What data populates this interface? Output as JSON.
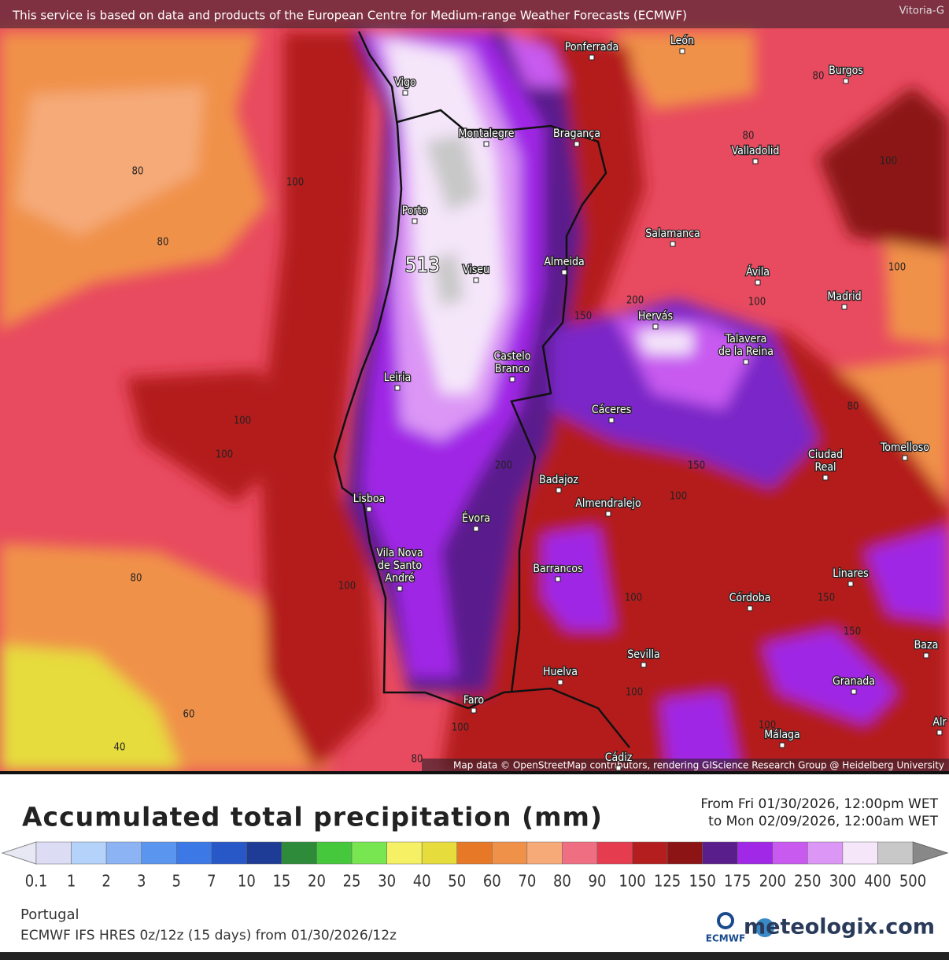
{
  "header": {
    "notice": "This service is based on data and products of the European Centre for Medium-range Weather Forecasts (ECMWF)",
    "corner": "Vitoria-G"
  },
  "map": {
    "cities": [
      {
        "lines": [
          "Vigo"
        ]
      },
      {
        "lines": [
          "Ponferrada"
        ]
      },
      {
        "lines": [
          "León"
        ]
      },
      {
        "lines": [
          "Burgos"
        ]
      },
      {
        "lines": [
          "Montalegre"
        ]
      },
      {
        "lines": [
          "Bragança"
        ]
      },
      {
        "lines": [
          "Valladolid"
        ]
      },
      {
        "lines": [
          "Porto"
        ]
      },
      {
        "lines": [
          "Salamanca"
        ]
      },
      {
        "lines": [
          "Viseu"
        ]
      },
      {
        "lines": [
          "Almeida"
        ]
      },
      {
        "lines": [
          "Ávila"
        ]
      },
      {
        "lines": [
          "Madrid"
        ]
      },
      {
        "lines": [
          "Hervás"
        ]
      },
      {
        "lines": [
          "Talavera",
          "de la Reina"
        ]
      },
      {
        "lines": [
          "Castelo",
          "Branco"
        ]
      },
      {
        "lines": [
          "Leiria"
        ]
      },
      {
        "lines": [
          "Cáceres"
        ]
      },
      {
        "lines": [
          "Ciudad",
          "Real"
        ]
      },
      {
        "lines": [
          "Tomelloso"
        ]
      },
      {
        "lines": [
          "Badajoz"
        ]
      },
      {
        "lines": [
          "Lisboa"
        ]
      },
      {
        "lines": [
          "Almendralejo"
        ]
      },
      {
        "lines": [
          "Évora"
        ]
      },
      {
        "lines": [
          "Vila Nova",
          "de Santo",
          "André"
        ]
      },
      {
        "lines": [
          "Barrancos"
        ]
      },
      {
        "lines": [
          "Linares"
        ]
      },
      {
        "lines": [
          "Córdoba"
        ]
      },
      {
        "lines": [
          "Sevilla"
        ]
      },
      {
        "lines": [
          "Baza"
        ]
      },
      {
        "lines": [
          "Huelva"
        ]
      },
      {
        "lines": [
          "Granada"
        ]
      },
      {
        "lines": [
          "Faro"
        ]
      },
      {
        "lines": [
          "Málaga"
        ]
      },
      {
        "lines": [
          "Cádiz"
        ]
      },
      {
        "lines": [
          "Alr"
        ]
      }
    ],
    "contour_labels": [
      "80",
      "100",
      "80",
      "100",
      "100",
      "80",
      "100",
      "60",
      "40",
      "80",
      "80",
      "100",
      "100",
      "100",
      "200",
      "150",
      "80",
      "200",
      "150",
      "100",
      "100",
      "150",
      "150",
      "100",
      "100",
      "80",
      "100"
    ],
    "max_label": "513",
    "attribution": "Map data © OpenStreetMap contributors, rendering GIScience Research Group @ Heidelberg University"
  },
  "legend": {
    "title": "Accumulated total precipitation (mm)",
    "period": [
      "From Fri 01/30/2026, 12:00pm WET",
      "to Mon 02/09/2026, 12:00am WET"
    ],
    "labels": [
      "0.1",
      "1",
      "2",
      "3",
      "5",
      "7",
      "10",
      "15",
      "20",
      "25",
      "30",
      "40",
      "50",
      "60",
      "70",
      "80",
      "90",
      "100",
      "125",
      "150",
      "175",
      "200",
      "250",
      "300",
      "400",
      "500"
    ],
    "colors": [
      "#dcdcf5",
      "#b4d2fa",
      "#8cb4f5",
      "#5a96f0",
      "#3c78e6",
      "#2858c8",
      "#1e3c96",
      "#2e8b3a",
      "#46c83c",
      "#78e650",
      "#f5f064",
      "#e6dc3c",
      "#e67828",
      "#f0914a",
      "#f5aa78",
      "#f06e82",
      "#e63c50",
      "#b41e1e",
      "#8c1414",
      "#5a1e8c",
      "#a028e6",
      "#c85af0",
      "#dc96f5",
      "#f5e6fa",
      "#c8c8c8"
    ],
    "low_color": "#e8e8f4",
    "high_color": "#888888"
  },
  "footer": {
    "region": "Portugal",
    "model": "ECMWF IFS HRES 0z/12z (15 days) from 01/30/2026/12z",
    "ecmwf": "ECMWF",
    "site": "meteologix.com"
  }
}
